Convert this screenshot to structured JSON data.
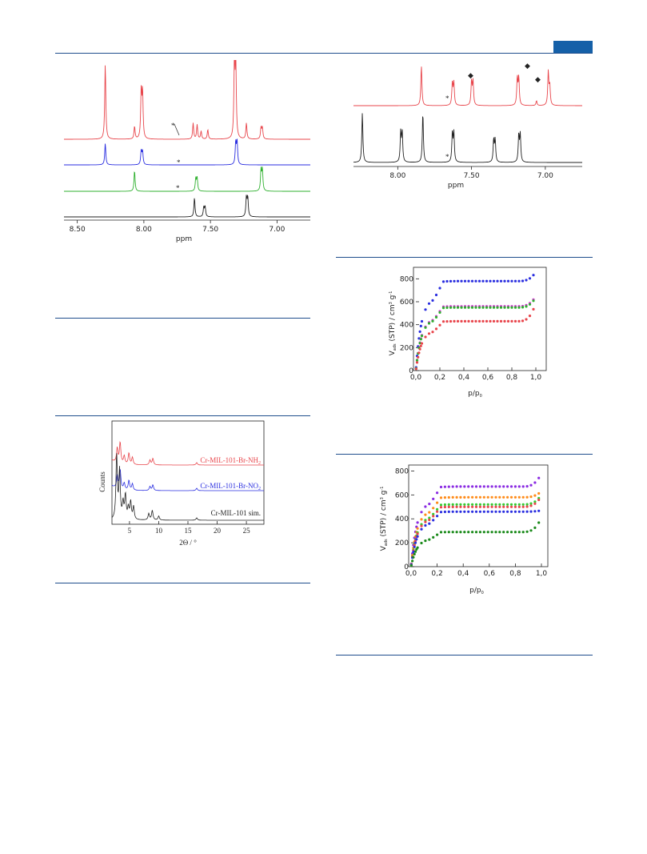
{
  "colors": {
    "rule": "#1f4e8c",
    "badge": "#1560a8",
    "red": "#e8454b",
    "blue": "#2a2ee0",
    "green": "#2fb02f",
    "black": "#222222",
    "purple": "#8a2be2",
    "orange": "#ff8c1a",
    "lime": "#33cc33",
    "darkgreen": "#1a8a1a",
    "magenta": "#cc33cc"
  },
  "figures": {
    "nmr_left": {
      "xlabel": "ppm",
      "ticks": [
        "8.50",
        "8.00",
        "7.50",
        "7.00"
      ],
      "star": "*"
    },
    "nmr_right": {
      "xlabel": "ppm",
      "ticks": [
        "8.00",
        "7.50",
        "7.00"
      ],
      "star": "*",
      "diamond": "◆"
    },
    "pxrd": {
      "ylabel": "Counts",
      "xlabel": "2Θ / °",
      "ticks": [
        "5",
        "10",
        "15",
        "20",
        "25"
      ],
      "labels": {
        "a": "Cr-MIL-101-Br-NH",
        "a_sub": "2",
        "b": "Cr-MIL-101-Br-NO",
        "b_sub": "2",
        "c": "Cr-MIL-101 sim."
      }
    },
    "iso1": {
      "ylabel_main": "V",
      "ylabel_sub": "ads",
      "ylabel_rest": " (STP) / cm",
      "ylabel_sup": "3",
      "ylabel_g": " g",
      "ylabel_sup2": "-1",
      "xlabel_main": "p/p",
      "xlabel_sub": "0",
      "yticks": [
        "0",
        "200",
        "400",
        "600",
        "800"
      ],
      "xticks": [
        "0,0",
        "0,2",
        "0,4",
        "0,6",
        "0,8",
        "1,0"
      ]
    },
    "iso2": {
      "ylabel_main": "V",
      "ylabel_sub": "ads",
      "ylabel_rest": " (STP) / cm",
      "ylabel_sup": "3",
      "ylabel_g": " g",
      "ylabel_sup2": "-1",
      "xlabel_main": "p/p",
      "xlabel_sub": "0",
      "yticks": [
        "0",
        "200",
        "400",
        "600",
        "800"
      ],
      "xticks": [
        "0,0",
        "0,2",
        "0,4",
        "0,6",
        "0,8",
        "1,0"
      ]
    }
  },
  "chart_data": [
    {
      "type": "line",
      "xlabel": "ppm",
      "xlim": [
        8.6,
        6.75
      ],
      "series": [
        {
          "peaks": [
            8.29,
            8.07,
            8.02,
            8.01,
            7.63,
            7.6,
            7.57,
            7.52,
            7.32,
            7.31,
            7.23,
            7.12,
            7.11
          ]
        },
        {
          "peaks": [
            8.29,
            8.02,
            8.01,
            7.31,
            7.3
          ]
        },
        {
          "peaks": [
            8.07,
            7.61,
            7.6,
            7.12,
            7.11
          ]
        },
        {
          "peaks": [
            7.62,
            7.55,
            7.54,
            7.23,
            7.22
          ]
        }
      ]
    },
    {
      "type": "line",
      "xlabel": "ppm",
      "xlim": [
        8.3,
        6.75
      ],
      "series": [
        {
          "peaks": [
            7.84,
            7.63,
            7.62,
            7.5,
            7.49,
            7.19,
            7.18,
            7.06,
            6.98,
            6.97
          ]
        },
        {
          "peaks": [
            8.24,
            7.98,
            7.97,
            7.83,
            7.63,
            7.62,
            7.35,
            7.34,
            7.18,
            7.17
          ]
        }
      ]
    },
    {
      "type": "line",
      "xlabel": "2Θ / °",
      "ylabel": "Counts",
      "xlim": [
        2,
        28
      ],
      "series": [
        {
          "name": "Cr-MIL-101-Br-NH2",
          "peaks": [
            2.9,
            3.4,
            4.1,
            4.9,
            5.5,
            8.5,
            9.0,
            16.5
          ]
        },
        {
          "name": "Cr-MIL-101-Br-NO2",
          "peaks": [
            2.9,
            3.4,
            4.1,
            4.9,
            5.5,
            8.5,
            9.0,
            16.5
          ]
        },
        {
          "name": "Cr-MIL-101 sim.",
          "peaks": [
            2.8,
            3.3,
            3.9,
            4.3,
            4.8,
            5.2,
            5.7,
            8.3,
            8.9,
            10.0,
            16.5
          ]
        }
      ]
    },
    {
      "type": "scatter",
      "xlabel": "p/p0",
      "ylabel": "Vads (STP) / cm3 g-1",
      "xlim": [
        0,
        1
      ],
      "ylim": [
        0,
        900
      ],
      "series": [
        {
          "color": "blue",
          "plateau": 780,
          "end": 860
        },
        {
          "color": "magenta",
          "plateau": 560,
          "end": 650
        },
        {
          "color": "green",
          "plateau": 550,
          "end": 640
        },
        {
          "color": "red",
          "plateau": 430,
          "end": 590
        }
      ]
    },
    {
      "type": "scatter",
      "xlabel": "p/p0",
      "ylabel": "Vads (STP) / cm3 g-1",
      "xlim": [
        0,
        1
      ],
      "ylim": [
        0,
        850
      ],
      "series": [
        {
          "color": "purple",
          "plateau": 670,
          "end": 780
        },
        {
          "color": "orange",
          "plateau": 580,
          "end": 630
        },
        {
          "color": "lime",
          "plateau": 520,
          "end": 600
        },
        {
          "color": "red",
          "plateau": 500,
          "end": 590
        },
        {
          "color": "blue",
          "plateau": 460,
          "end": 470
        },
        {
          "color": "darkgreen",
          "plateau": 290,
          "end": 410
        }
      ]
    }
  ]
}
